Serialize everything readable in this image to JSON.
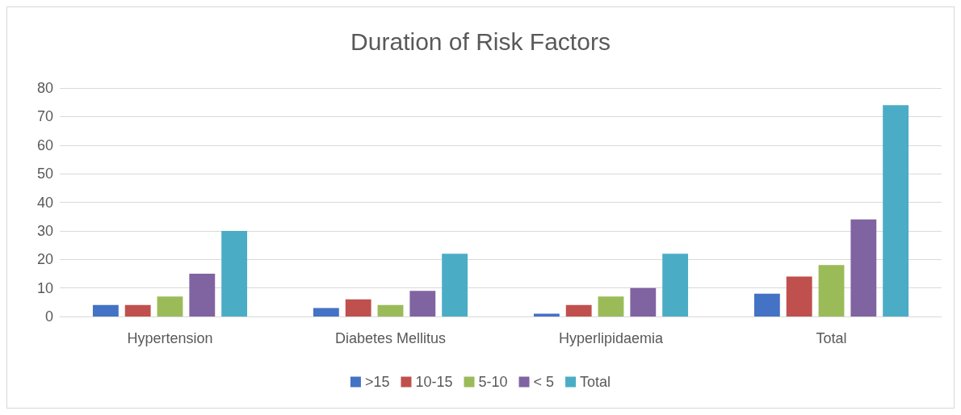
{
  "chart_data": {
    "type": "bar",
    "title": "Duration of Risk Factors",
    "categories": [
      "Hypertension",
      "Diabetes Mellitus",
      "Hyperlipidaemia",
      "Total"
    ],
    "series": [
      {
        "name": ">15",
        "color": "#4472c4",
        "values": [
          4,
          3,
          1,
          8
        ]
      },
      {
        "name": "10-15",
        "color": "#c0504d",
        "values": [
          4,
          6,
          4,
          14
        ]
      },
      {
        "name": "5-10",
        "color": "#9bbb59",
        "values": [
          7,
          4,
          7,
          18
        ]
      },
      {
        "name": "< 5",
        "color": "#8064a2",
        "values": [
          15,
          9,
          10,
          34
        ]
      },
      {
        "name": "Total",
        "color": "#4bacc6",
        "values": [
          30,
          22,
          22,
          74
        ]
      }
    ],
    "ylim": [
      0,
      80
    ],
    "yticks": [
      0,
      10,
      20,
      30,
      40,
      50,
      60,
      70,
      80
    ],
    "grid": "y",
    "legend": "bottom"
  }
}
